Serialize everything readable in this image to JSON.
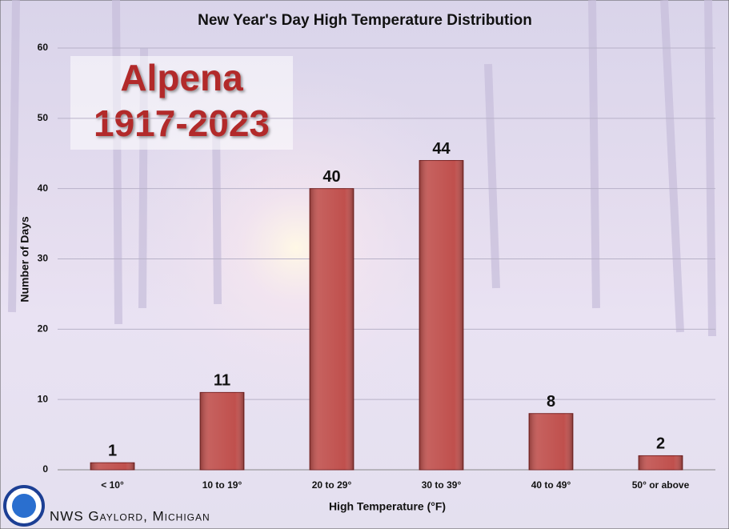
{
  "chart_data": {
    "type": "bar",
    "title": "New Year's Day High Temperature Distribution",
    "annotations": [
      "Alpena",
      "1917-2023"
    ],
    "footer": "NWS Gaylord, Michigan",
    "x_label": "High Temperature (°F)",
    "y_label": "Number of Days",
    "categories": [
      "< 10°",
      "10 to 19°",
      "20 to 29°",
      "30 to 39°",
      "40 to 49°",
      "50° or above"
    ],
    "values": [
      1,
      11,
      40,
      44,
      8,
      2
    ],
    "color": "#c0504d",
    "ylim": [
      0,
      60
    ],
    "yticks": [
      0,
      10,
      20,
      30,
      40,
      50,
      60
    ],
    "grid": true
  }
}
